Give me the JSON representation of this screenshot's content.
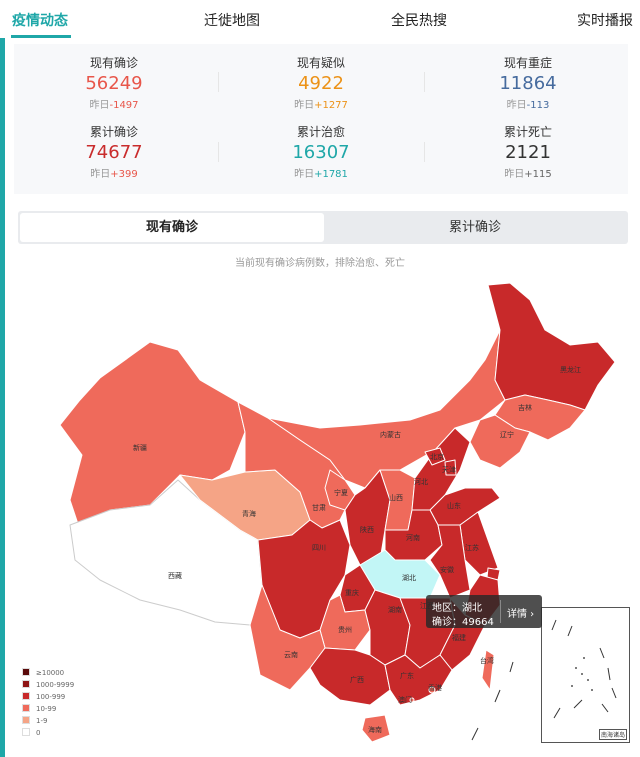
{
  "nav": {
    "tabs": [
      "疫情动态",
      "迁徙地图",
      "全民热搜",
      "实时播报"
    ]
  },
  "stats": [
    {
      "label": "现有确诊",
      "value": "56249",
      "delta_label": "昨日",
      "delta": "-1497",
      "color": "#e8564a",
      "delta_color": "#e8564a"
    },
    {
      "label": "现有疑似",
      "value": "4922",
      "delta_label": "昨日",
      "delta": "+1277",
      "color": "#ec9217",
      "delta_color": "#ec9217"
    },
    {
      "label": "现有重症",
      "value": "11864",
      "delta_label": "昨日",
      "delta": "-113",
      "color": "#466b9e",
      "delta_color": "#466b9e"
    },
    {
      "label": "累计确诊",
      "value": "74677",
      "delta_label": "昨日",
      "delta": "+399",
      "color": "#c92c2c",
      "delta_color": "#e8564a"
    },
    {
      "label": "累计治愈",
      "value": "16307",
      "delta_label": "昨日",
      "delta": "+1781",
      "color": "#1fa7a8",
      "delta_color": "#1fa7a8"
    },
    {
      "label": "累计死亡",
      "value": "2121",
      "delta_label": "昨日",
      "delta": "+115",
      "color": "#333333",
      "delta_color": "#666666"
    }
  ],
  "map": {
    "switch": {
      "active": "现有确诊",
      "inactive": "累计确诊"
    },
    "subtitle": "当前现有确诊病例数，排除治愈、死亡",
    "provinces": {
      "heilongjiang": "黑龙江",
      "jilin": "吉林",
      "liaoning": "辽宁",
      "neimenggu": "内蒙古",
      "xinjiang": "新疆",
      "xizang": "西藏",
      "qinghai": "青海",
      "gansu": "甘肃",
      "ningxia": "宁夏",
      "shanxi": "山西",
      "shaanxi": "陕西",
      "beijing": "北京",
      "tianjin": "天津",
      "hebei": "河北",
      "shandong": "山东",
      "henan": "河南",
      "jiangsu": "江苏",
      "anhui": "安徽",
      "hubei": "湖北",
      "sichuan": "四川",
      "chongqing": "重庆",
      "guizhou": "贵州",
      "yunnan": "云南",
      "hunan": "湖南",
      "jiangxi": "江西",
      "fujian": "福建",
      "guangxi": "广西",
      "guangdong": "广东",
      "hongkong": "香港",
      "macau": "澳门",
      "taiwan": "台湾",
      "hainan": "海南"
    },
    "tooltip": {
      "region_label": "地区：",
      "region": "湖北",
      "count_label": "确诊：",
      "count": "49664",
      "more": "详情 ›"
    },
    "legend": [
      {
        "label": "≥10000",
        "color": "#5a0a0a"
      },
      {
        "label": "1000-9999",
        "color": "#8e1414"
      },
      {
        "label": "100-999",
        "color": "#c8292a"
      },
      {
        "label": "10-99",
        "color": "#ef6a5b"
      },
      {
        "label": "1-9",
        "color": "#f5a486"
      },
      {
        "label": "0",
        "color": "#ffffff"
      }
    ],
    "inset_label": "南海诸岛",
    "colors": {
      "hubei": "#c2f6f6",
      "high": "#c8292a",
      "mid": "#ef6a5b",
      "low": "#f5a486",
      "none": "#ffffff"
    }
  }
}
